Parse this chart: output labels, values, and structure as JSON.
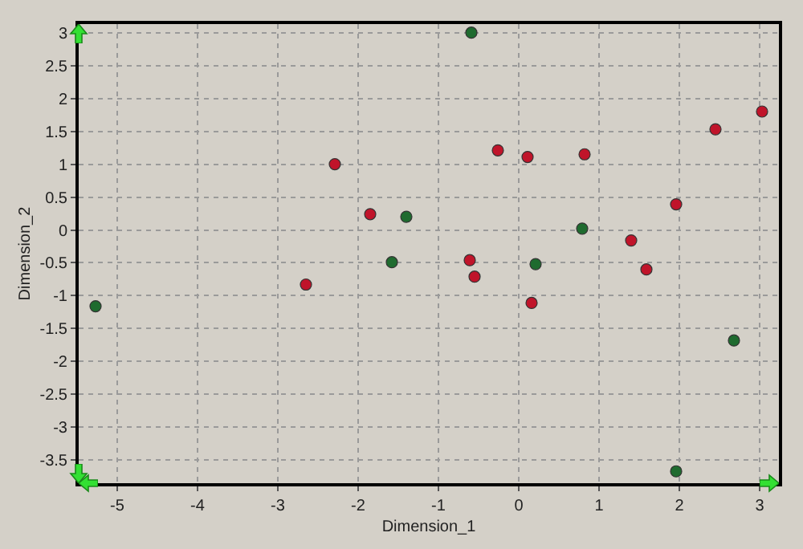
{
  "chart_data": {
    "type": "scatter",
    "xlabel": "Dimension_1",
    "ylabel": "Dimension_2",
    "xlim": [
      -5.48,
      3.24
    ],
    "ylim": [
      -3.85,
      3.13
    ],
    "xticks": [
      -5,
      -4,
      -3,
      -2,
      -1,
      0,
      1,
      2,
      3
    ],
    "yticks": [
      -3.5,
      -3,
      -2.5,
      -2,
      -1.5,
      -1,
      -0.5,
      0,
      0.5,
      1,
      1.5,
      2,
      2.5,
      3
    ],
    "grid": true,
    "marker": "circle",
    "series": [
      {
        "color": "#c0142a",
        "x": [
          -2.29,
          -1.85,
          -2.65,
          -0.26,
          0.11,
          0.82,
          2.45,
          3.03,
          1.96,
          1.4,
          1.59,
          -0.61,
          -0.55,
          0.16
        ],
        "values": [
          1.0,
          0.24,
          -0.83,
          1.21,
          1.11,
          1.15,
          1.53,
          1.8,
          0.39,
          -0.16,
          -0.6,
          -0.46,
          -0.71,
          -1.11
        ]
      },
      {
        "color": "#1f6b2f",
        "x": [
          -0.59,
          -1.4,
          -1.58,
          0.21,
          0.79,
          -5.27,
          2.68,
          1.96
        ],
        "values": [
          3.0,
          0.2,
          -0.49,
          -0.52,
          0.02,
          -1.16,
          -1.68,
          -3.67
        ]
      }
    ]
  }
}
